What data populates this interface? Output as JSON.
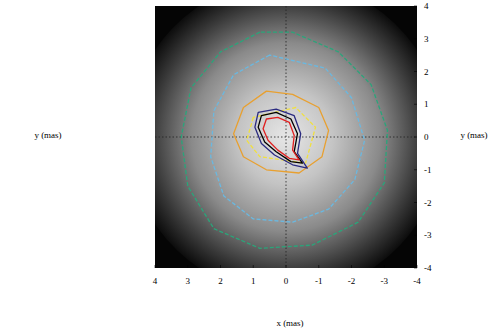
{
  "chart_data": {
    "type": "image",
    "xlabel": "x (mas)",
    "ylabel": "y (mas)",
    "y2label": "y (mas)",
    "xlim": [
      4,
      -4
    ],
    "ylim": [
      -4,
      4
    ],
    "xticks": [
      4,
      3,
      2,
      1,
      0,
      -1,
      -2,
      -3,
      -4
    ],
    "yticks": [
      4,
      3,
      2,
      1,
      0,
      -1,
      -2,
      -3,
      -4
    ],
    "contours": [
      {
        "color": "#2aa57a",
        "line_style": "dashed",
        "x": [
          0.8,
          2.0,
          2.9,
          3.2,
          3.0,
          2.2,
          0.8,
          -0.8,
          -2.2,
          -3.0,
          -3.1,
          -2.6,
          -1.6,
          -0.2
        ],
        "y": [
          3.2,
          2.6,
          1.5,
          0.0,
          -1.5,
          -2.8,
          -3.4,
          -3.3,
          -2.6,
          -1.4,
          0.2,
          1.6,
          2.6,
          3.2
        ]
      },
      {
        "color": "#6ab8e0",
        "line_style": "dashed",
        "x": [
          0.5,
          1.6,
          2.2,
          2.3,
          1.9,
          1.0,
          -0.2,
          -1.3,
          -2.1,
          -2.4,
          -2.0,
          -1.2
        ],
        "y": [
          2.5,
          1.9,
          0.8,
          -0.6,
          -1.8,
          -2.5,
          -2.6,
          -2.2,
          -1.3,
          -0.1,
          1.2,
          2.1
        ]
      },
      {
        "color": "#e8a030",
        "line_style": "solid",
        "x": [
          0.6,
          1.3,
          1.6,
          1.3,
          0.6,
          -0.4,
          -1.1,
          -1.3,
          -1.0,
          -0.2
        ],
        "y": [
          1.4,
          0.9,
          0.1,
          -0.6,
          -1.0,
          -1.1,
          -0.6,
          0.2,
          0.9,
          1.3
        ]
      },
      {
        "color": "#f0e040",
        "line_style": "dashed",
        "x": [
          1.0,
          1.2,
          0.8,
          -0.6,
          -0.9,
          -0.3
        ],
        "y": [
          0.6,
          -0.1,
          -0.6,
          -0.8,
          0.3,
          0.9
        ]
      },
      {
        "color": "#2a2a80",
        "line_style": "solid",
        "x": [
          0.85,
          0.3,
          -0.25,
          -0.45,
          -0.35,
          -0.65,
          -0.2,
          0.35,
          0.75,
          0.95
        ],
        "y": [
          0.75,
          0.85,
          0.65,
          0.1,
          -0.5,
          -0.95,
          -0.85,
          -0.55,
          -0.2,
          0.3
        ]
      },
      {
        "color": "#000000",
        "line_style": "solid",
        "x": [
          0.75,
          0.3,
          -0.15,
          -0.35,
          -0.25,
          -0.5,
          -0.15,
          0.3,
          0.65,
          0.85
        ],
        "y": [
          0.65,
          0.75,
          0.55,
          0.1,
          -0.45,
          -0.8,
          -0.75,
          -0.45,
          -0.15,
          0.3
        ]
      },
      {
        "color": "#e02020",
        "line_style": "solid",
        "x": [
          0.6,
          0.25,
          -0.1,
          -0.25,
          -0.2,
          -0.4,
          -0.1,
          0.25,
          0.55,
          0.7
        ],
        "y": [
          0.55,
          0.6,
          0.45,
          0.05,
          -0.4,
          -0.7,
          -0.65,
          -0.4,
          -0.1,
          0.25
        ]
      }
    ]
  }
}
